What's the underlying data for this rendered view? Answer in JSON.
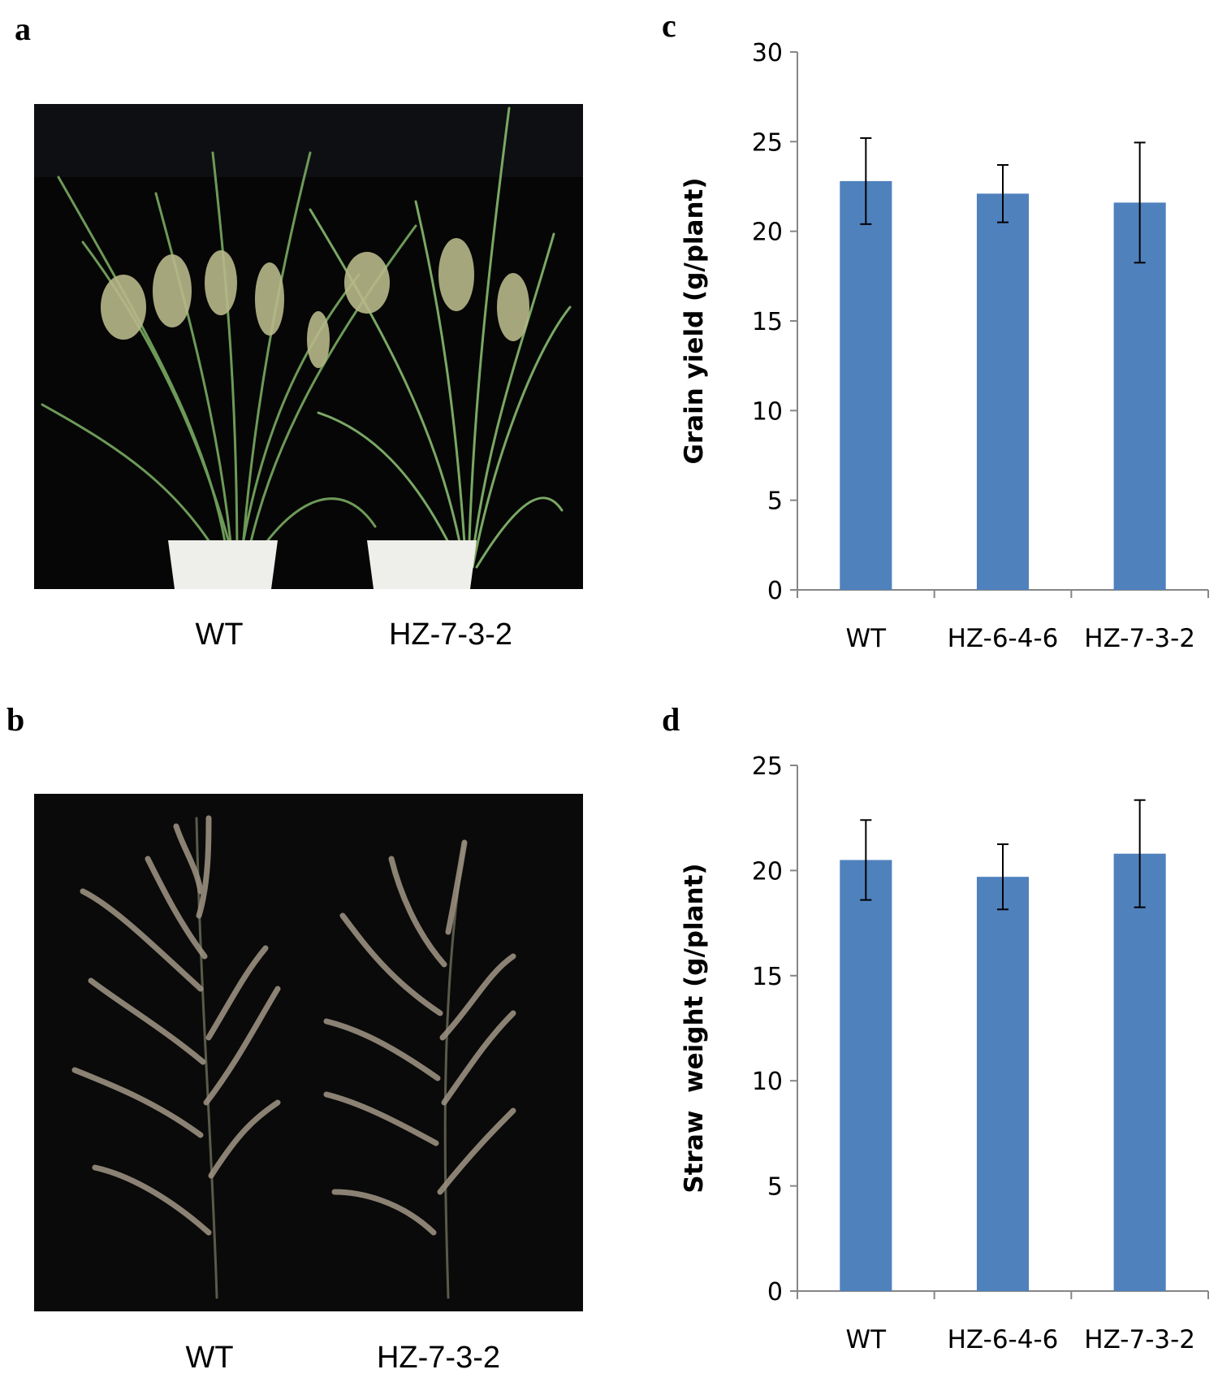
{
  "panels": {
    "a": {
      "letter": "a",
      "labels": [
        "WT",
        "HZ-7-3-2"
      ]
    },
    "b": {
      "letter": "b",
      "labels": [
        "WT",
        "HZ-7-3-2"
      ]
    },
    "c": {
      "letter": "c"
    },
    "d": {
      "letter": "d"
    }
  },
  "colors": {
    "bar": "#4f81bd",
    "photo_background": "#050505"
  },
  "chart_data": [
    {
      "id": "c",
      "type": "bar",
      "categories": [
        "WT",
        "HZ-6-4-6",
        "HZ-7-3-2"
      ],
      "values": [
        22.8,
        22.1,
        21.6
      ],
      "error": [
        2.4,
        1.6,
        3.35
      ],
      "ylabel": "Grain yield (g/plant)",
      "xlabel": "",
      "ylim": [
        0,
        30
      ],
      "yticks": [
        0,
        5,
        10,
        15,
        20,
        25,
        30
      ],
      "grid": false,
      "legend": "none"
    },
    {
      "id": "d",
      "type": "bar",
      "categories": [
        "WT",
        "HZ-6-4-6",
        "HZ-7-3-2"
      ],
      "values": [
        20.5,
        19.7,
        20.8
      ],
      "error": [
        1.9,
        1.55,
        2.55
      ],
      "ylabel": "Straw  weight (g/plant)",
      "xlabel": "",
      "ylim": [
        0,
        25
      ],
      "yticks": [
        0,
        5,
        10,
        15,
        20,
        25
      ],
      "grid": false,
      "legend": "none"
    }
  ]
}
